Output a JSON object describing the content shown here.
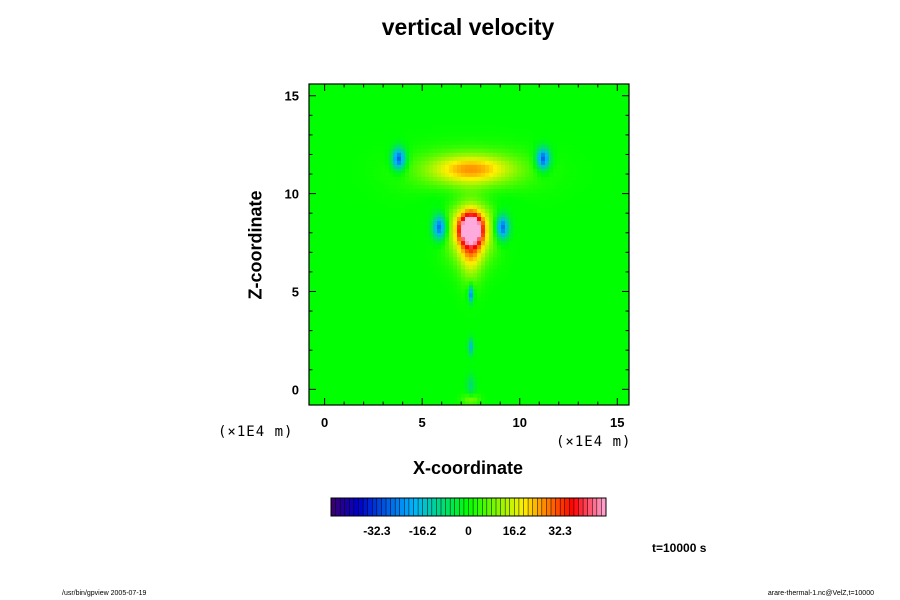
{
  "chart_data": {
    "type": "heatmap",
    "title": "vertical velocity",
    "xlabel": "X-coordinate",
    "ylabel": "Z-coordinate",
    "x_unit": "(×1E4 m)",
    "z_unit": "(×1E4 m)",
    "xlim": [
      -0.8,
      15.6
    ],
    "ylim": [
      -0.8,
      15.6
    ],
    "x_ticks": [
      0,
      5,
      10,
      15
    ],
    "y_ticks": [
      0,
      5,
      10,
      15
    ],
    "time_label": "t=10000 s",
    "colorbar": {
      "min": -48.5,
      "max": 48.5,
      "ticks": [
        -32.3,
        -16.2,
        0,
        16.2,
        32.3
      ],
      "tick_labels": [
        "-32.3",
        "-16.2",
        "0",
        "16.2",
        "32.3"
      ]
    },
    "features": [
      {
        "x": 7.5,
        "z": 8.2,
        "value": 48,
        "sx": 0.35,
        "sz": 0.45
      },
      {
        "x": 7.5,
        "z": 8.2,
        "value": 28,
        "sx": 0.8,
        "sz": 1.1
      },
      {
        "x": 7.5,
        "z": 7.2,
        "value": 14,
        "sx": 0.4,
        "sz": 1.2
      },
      {
        "x": 7.5,
        "z": 11.3,
        "value": 18,
        "sx": 1.5,
        "sz": 0.5
      },
      {
        "x": 7.5,
        "z": 11.1,
        "value": 8,
        "sx": 2.3,
        "sz": 0.9
      },
      {
        "x": 5.9,
        "z": 8.3,
        "value": -30,
        "sx": 0.25,
        "sz": 0.45
      },
      {
        "x": 9.1,
        "z": 8.3,
        "value": -30,
        "sx": 0.25,
        "sz": 0.45
      },
      {
        "x": 3.8,
        "z": 11.8,
        "value": -30,
        "sx": 0.25,
        "sz": 0.4
      },
      {
        "x": 11.2,
        "z": 11.8,
        "value": -30,
        "sx": 0.25,
        "sz": 0.4
      },
      {
        "x": 7.5,
        "z": 4.9,
        "value": -25,
        "sx": 0.1,
        "sz": 0.3
      },
      {
        "x": 7.5,
        "z": 2.2,
        "value": -16,
        "sx": 0.1,
        "sz": 0.3
      },
      {
        "x": 7.5,
        "z": 0.2,
        "value": -9,
        "sx": 0.15,
        "sz": 0.4
      },
      {
        "x": 7.5,
        "z": -0.5,
        "value": 10,
        "sx": 0.3,
        "sz": 0.2
      },
      {
        "x": 7.5,
        "z": 9.8,
        "value": -6,
        "sx": 1.4,
        "sz": 0.5
      }
    ]
  },
  "footer": {
    "left": "/usr/bin/gpview 2005-07-19",
    "right": "arare-thermal-1.nc@VelZ,t=10000"
  }
}
